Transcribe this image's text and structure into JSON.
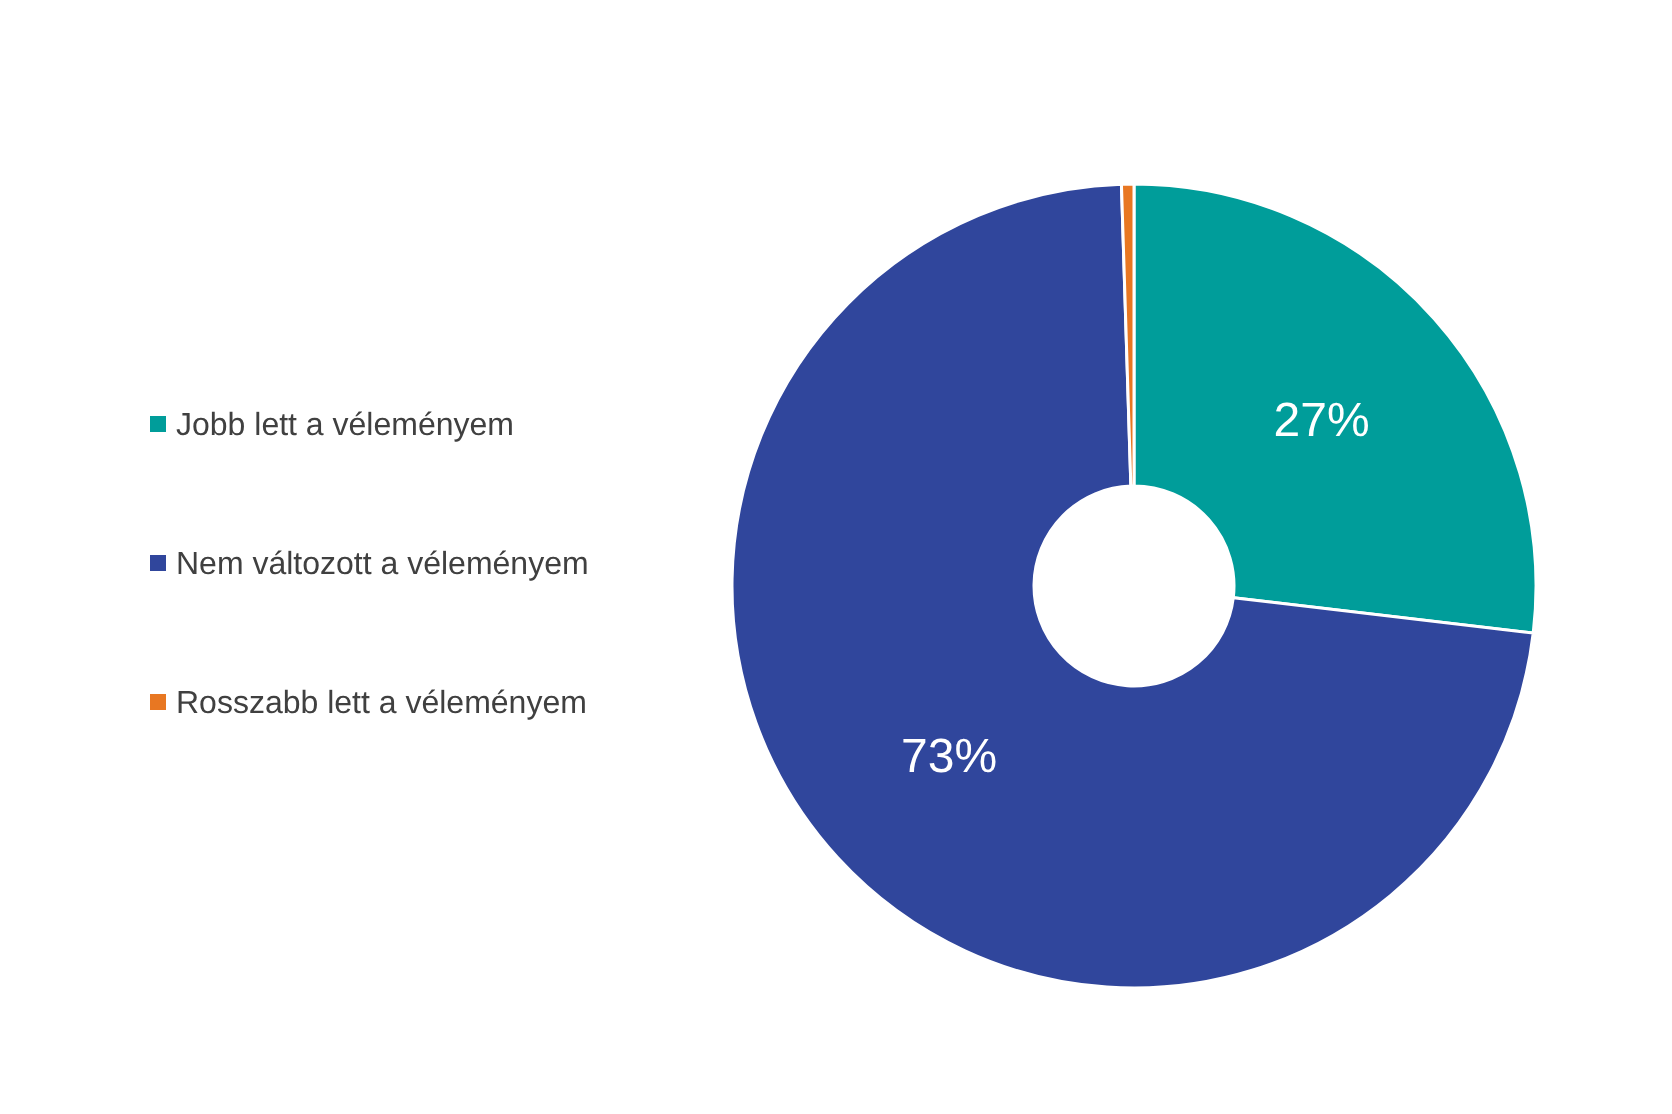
{
  "chart_data": {
    "type": "donut",
    "categories": [
      "Jobb lett a véleményem",
      "Nem változott a véleményem",
      "Rosszabb lett a véleményem"
    ],
    "values": [
      27,
      73,
      0.5
    ],
    "colors": [
      "#009d9a",
      "#30469c",
      "#e87722"
    ],
    "value_labels": [
      "27%",
      "73%",
      null
    ],
    "legend": "left"
  }
}
